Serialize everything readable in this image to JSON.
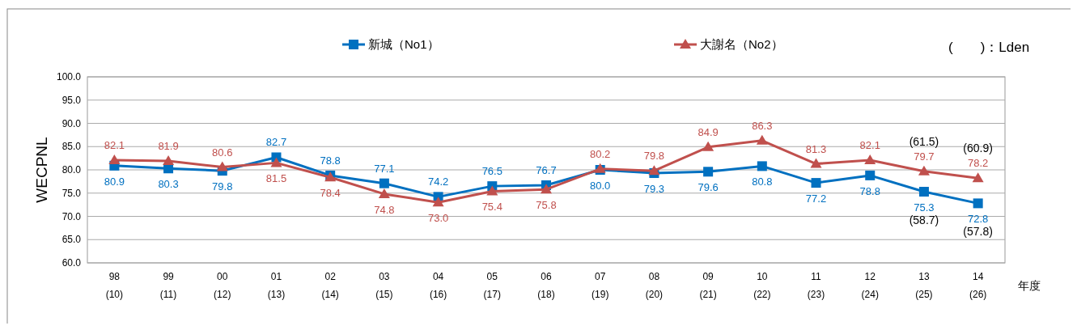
{
  "chart_data": {
    "type": "line",
    "ylabel": "WECPNL",
    "xlabel": "年度",
    "categories": [
      "98\n(10)",
      "99\n(11)",
      "00\n(12)",
      "01\n(13)",
      "02\n(14)",
      "03\n(15)",
      "04\n(16)",
      "05\n(17)",
      "06\n(18)",
      "07\n(19)",
      "08\n(20)",
      "09\n(21)",
      "10\n(22)",
      "11\n(23)",
      "12\n(24)",
      "13\n(25)",
      "14\n(26)"
    ],
    "series": [
      {
        "name": "新城（No1）",
        "color": "#0070c0",
        "marker": "square",
        "values": [
          80.9,
          80.3,
          79.8,
          82.7,
          78.8,
          77.1,
          74.2,
          76.5,
          76.7,
          80.0,
          79.3,
          79.6,
          80.8,
          77.2,
          78.8,
          75.3,
          72.8
        ],
        "value_labels": [
          "80.9",
          "80.3",
          "79.8",
          "82.7",
          "78.8",
          "77.1",
          "74.2",
          "76.5",
          "76.7",
          "80.0",
          "79.3",
          "79.6",
          "80.8",
          "77.2",
          "78.8",
          "75.3",
          "72.8"
        ]
      },
      {
        "name": "大謝名（No2）",
        "color": "#c0504d",
        "marker": "triangle",
        "values": [
          82.1,
          81.9,
          80.6,
          81.5,
          78.4,
          74.8,
          73.0,
          75.4,
          75.8,
          80.2,
          79.8,
          84.9,
          86.3,
          81.3,
          82.1,
          79.7,
          78.2
        ],
        "value_labels": [
          "82.1",
          "81.9",
          "80.6",
          "81.5",
          "78.4",
          "74.8",
          "73.0",
          "75.4",
          "75.8",
          "80.2",
          "79.8",
          "84.9",
          "86.3",
          "81.3",
          "82.1",
          "79.7",
          "78.2"
        ]
      }
    ],
    "ylim": [
      60,
      100
    ],
    "yticks": [
      {
        "value": 60,
        "label": "60.0"
      },
      {
        "value": 65,
        "label": "65.0"
      },
      {
        "value": 70,
        "label": "70.0"
      },
      {
        "value": 75,
        "label": "75.0"
      },
      {
        "value": 80,
        "label": "80.0"
      },
      {
        "value": 85,
        "label": "85.0"
      },
      {
        "value": 90,
        "label": "90.0"
      },
      {
        "value": 95,
        "label": "95.0"
      },
      {
        "value": 100,
        "label": "100.0"
      }
    ],
    "grid": "y",
    "legend": "top",
    "annotations": [
      "(　　)：Lden",
      {
        "text": "(61.5)",
        "x": "13\n(25)",
        "y": 79.7
      },
      {
        "text": "(60.9)",
        "x": "14\n(26)",
        "y": 78.2
      },
      {
        "text": "(58.7)",
        "x": "13\n(25)",
        "y": 75.3
      },
      {
        "text": "(57.8)",
        "x": "14\n(26)",
        "y": 72.8
      }
    ]
  }
}
